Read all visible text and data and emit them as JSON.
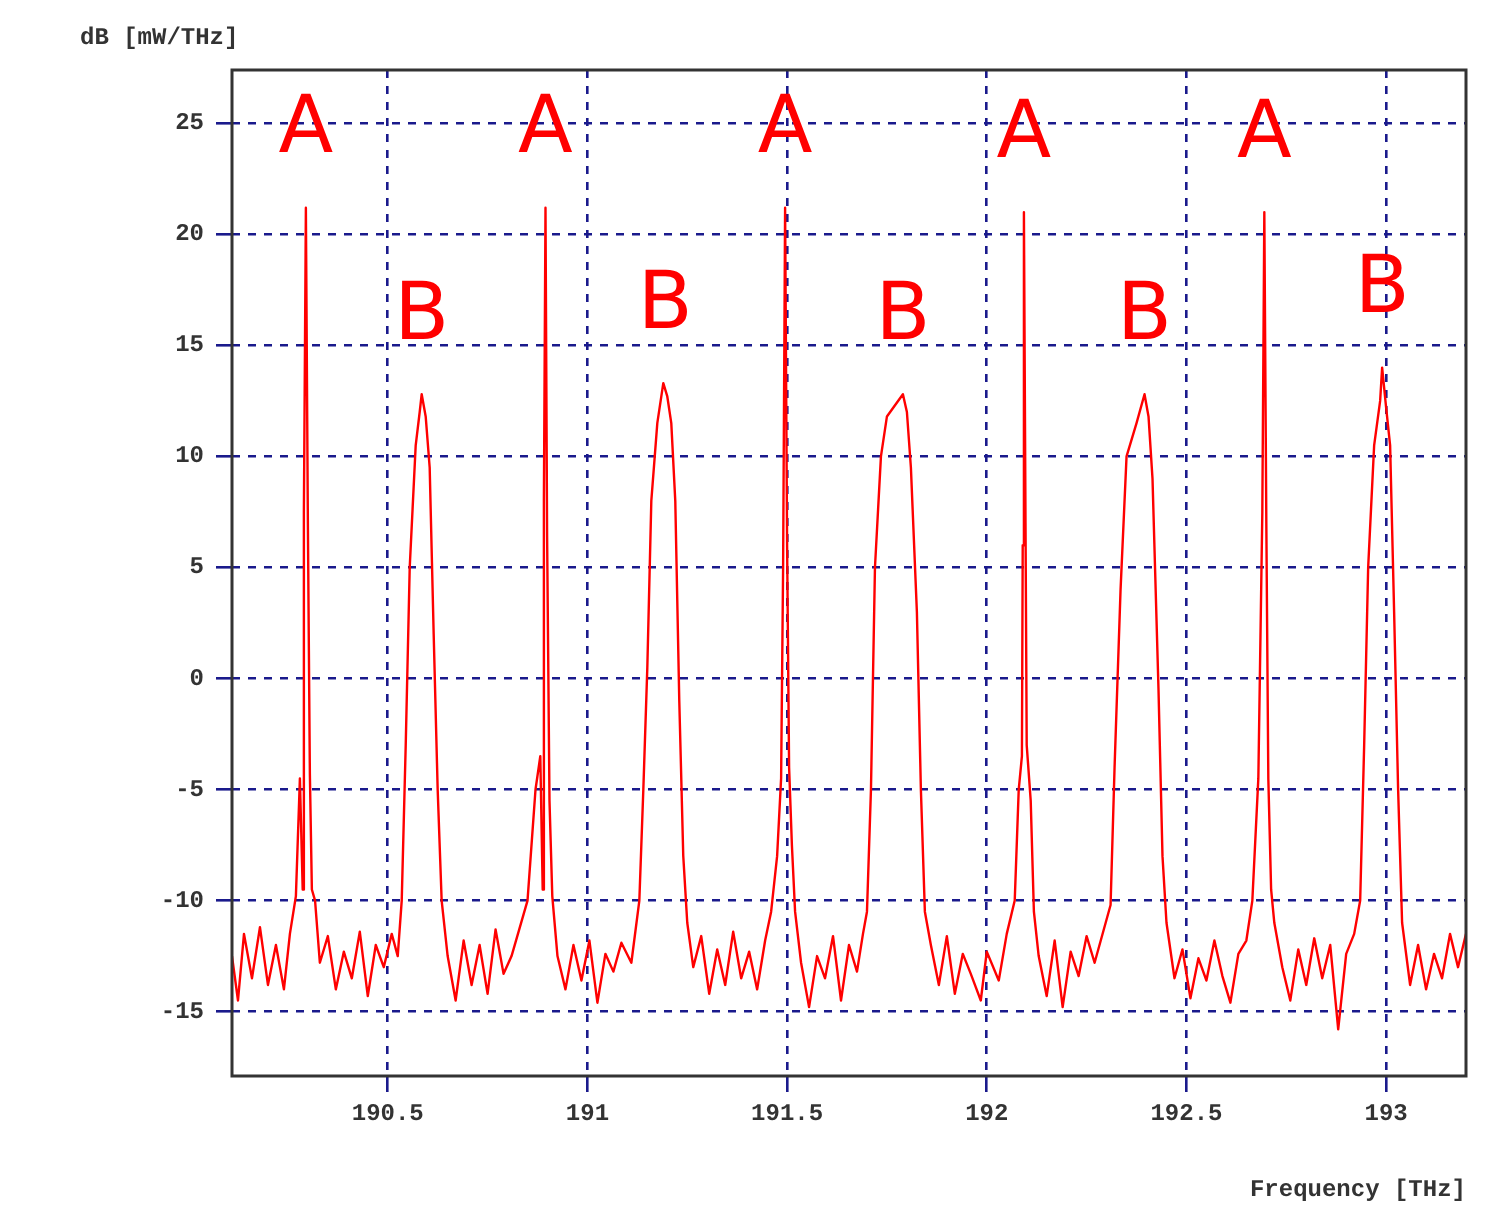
{
  "chart_data": {
    "type": "line",
    "xlabel": "Frequency [THz]",
    "ylabel": "dB [mW/THz]",
    "xlim": [
      190.11,
      193.2
    ],
    "ylim": [
      -17.9,
      27.4
    ],
    "xticks": [
      190.5,
      191,
      191.5,
      192,
      192.5,
      193
    ],
    "yticks": [
      -15,
      -10,
      -5,
      0,
      5,
      10,
      15,
      20,
      25
    ],
    "grid": true,
    "legend": false,
    "marker": "none",
    "line_style": "solid",
    "annotations": [
      {
        "text": "A",
        "x": 190.295,
        "y": 21.2
      },
      {
        "text": "A",
        "x": 190.895,
        "y": 21.2
      },
      {
        "text": "A",
        "x": 191.495,
        "y": 21.2
      },
      {
        "text": "A",
        "x": 192.093,
        "y": 21
      },
      {
        "text": "A",
        "x": 192.695,
        "y": 21
      },
      {
        "text": "B",
        "x": 190.585,
        "y": 12.8
      },
      {
        "text": "B",
        "x": 191.195,
        "y": 13.3
      },
      {
        "text": "B",
        "x": 191.79,
        "y": 12.8
      },
      {
        "text": "B",
        "x": 192.395,
        "y": 12.8
      },
      {
        "text": "B",
        "x": 192.99,
        "y": 14
      }
    ],
    "series": [
      {
        "color": "#ff0000",
        "x": [
          190.11,
          190.125,
          190.14,
          190.16,
          190.18,
          190.2,
          190.22,
          190.24,
          190.255,
          190.27,
          190.28,
          190.287,
          190.29,
          190.295,
          190.3,
          190.305,
          190.31,
          190.318,
          190.33,
          190.35,
          190.37,
          190.39,
          190.41,
          190.43,
          190.45,
          190.47,
          190.49,
          190.51,
          190.525,
          190.535,
          190.545,
          190.555,
          190.57,
          190.58,
          190.585,
          190.595,
          190.605,
          190.615,
          190.625,
          190.635,
          190.65,
          190.67,
          190.69,
          190.71,
          190.73,
          190.75,
          190.77,
          190.79,
          190.81,
          190.85,
          190.87,
          190.882,
          190.888,
          190.891,
          190.895,
          190.899,
          190.905,
          190.912,
          190.925,
          190.945,
          190.965,
          190.985,
          191.005,
          191.025,
          191.045,
          191.065,
          191.085,
          191.11,
          191.13,
          191.14,
          191.15,
          191.16,
          191.175,
          191.19,
          191.2,
          191.21,
          191.22,
          191.23,
          191.24,
          191.25,
          191.265,
          191.285,
          191.305,
          191.325,
          191.345,
          191.365,
          191.385,
          191.405,
          191.425,
          191.445,
          191.46,
          191.475,
          191.485,
          191.49,
          191.495,
          191.5,
          191.505,
          191.512,
          191.52,
          191.535,
          191.555,
          191.575,
          191.595,
          191.615,
          191.635,
          191.655,
          191.675,
          191.69,
          191.7,
          191.71,
          191.72,
          191.735,
          191.75,
          191.79,
          191.8,
          191.81,
          191.825,
          191.835,
          191.845,
          191.86,
          191.88,
          191.9,
          191.92,
          191.94,
          191.96,
          191.985,
          192.0,
          192.03,
          192.05,
          192.07,
          192.08,
          192.088,
          192.09,
          192.093,
          192.097,
          192.1,
          192.11,
          192.118,
          192.13,
          192.15,
          192.17,
          192.19,
          192.21,
          192.23,
          192.25,
          192.27,
          192.31,
          192.32,
          192.335,
          192.35,
          192.375,
          192.395,
          192.405,
          192.415,
          192.43,
          192.44,
          192.45,
          192.47,
          192.49,
          192.51,
          192.53,
          192.55,
          192.57,
          192.59,
          192.61,
          192.63,
          192.65,
          192.665,
          192.68,
          192.69,
          192.695,
          192.7,
          192.705,
          192.712,
          192.72,
          192.74,
          192.76,
          192.78,
          192.8,
          192.82,
          192.84,
          192.86,
          192.88,
          192.9,
          192.92,
          192.935,
          192.945,
          192.955,
          192.97,
          192.985,
          192.99,
          193.0,
          193.01,
          193.02,
          193.03,
          193.04,
          193.06,
          193.08,
          193.1,
          193.12,
          193.14,
          193.16,
          193.18,
          193.2
        ],
        "values": [
          -12.5,
          -14.5,
          -11.5,
          -13.5,
          -11.2,
          -13.8,
          -12,
          -14,
          -11.5,
          -9.8,
          -4.5,
          -9.5,
          7.5,
          21.2,
          7,
          -4.3,
          -9.5,
          -10,
          -12.8,
          -11.6,
          -14,
          -12.3,
          -13.5,
          -11.4,
          -14.3,
          -12,
          -13,
          -11.5,
          -12.5,
          -10,
          -3,
          5,
          10.5,
          12,
          12.8,
          11.8,
          9.5,
          2,
          -5,
          -10,
          -12.5,
          -14.5,
          -11.8,
          -13.8,
          -12,
          -14.2,
          -11.3,
          -13.3,
          -12.5,
          -10,
          -5,
          -3.5,
          -9.5,
          8,
          21.2,
          6.5,
          -5.5,
          -9.8,
          -12.5,
          -14,
          -12,
          -13.6,
          -11.8,
          -14.6,
          -12.4,
          -13.2,
          -11.9,
          -12.8,
          -10,
          -5,
          0.5,
          8,
          11.5,
          13.3,
          12.7,
          11.5,
          8,
          -1,
          -8,
          -11,
          -13,
          -11.6,
          -14.2,
          -12.2,
          -13.8,
          -11.4,
          -13.5,
          -12.3,
          -14,
          -11.8,
          -10.5,
          -8,
          -4.5,
          5,
          21.2,
          6,
          -4,
          -7.5,
          -10.5,
          -12.8,
          -14.8,
          -12.5,
          -13.5,
          -11.6,
          -14.5,
          -12,
          -13.2,
          -11.5,
          -10.5,
          -5,
          5,
          10,
          11.8,
          12.8,
          12,
          9.5,
          3,
          -5,
          -10.5,
          -12,
          -13.8,
          -11.6,
          -14.2,
          -12.4,
          -13.3,
          -14.5,
          -12.3,
          -13.6,
          -11.5,
          -10,
          -5,
          -3.5,
          6,
          21,
          7,
          -3,
          -5.5,
          -10.5,
          -12.5,
          -14.3,
          -11.8,
          -14.8,
          -12.3,
          -13.4,
          -11.6,
          -12.8,
          -10.2,
          -4,
          4,
          10,
          11.5,
          12.8,
          11.8,
          9,
          -0.5,
          -8,
          -11,
          -13.5,
          -12.2,
          -14.4,
          -12.6,
          -13.6,
          -11.8,
          -13.4,
          -14.6,
          -12.4,
          -11.8,
          -10,
          -4.5,
          7.5,
          21,
          7,
          -4.5,
          -9.5,
          -11,
          -13,
          -14.5,
          -12.2,
          -13.8,
          -11.7,
          -13.5,
          -12,
          -15.8,
          -12.4,
          -11.5,
          -10,
          -3,
          5,
          10.5,
          12.5,
          14,
          12.2,
          10.5,
          3,
          -5,
          -11,
          -13.8,
          -12,
          -14,
          -12.4,
          -13.5,
          -11.5,
          -13,
          -11.5
        ]
      }
    ]
  }
}
